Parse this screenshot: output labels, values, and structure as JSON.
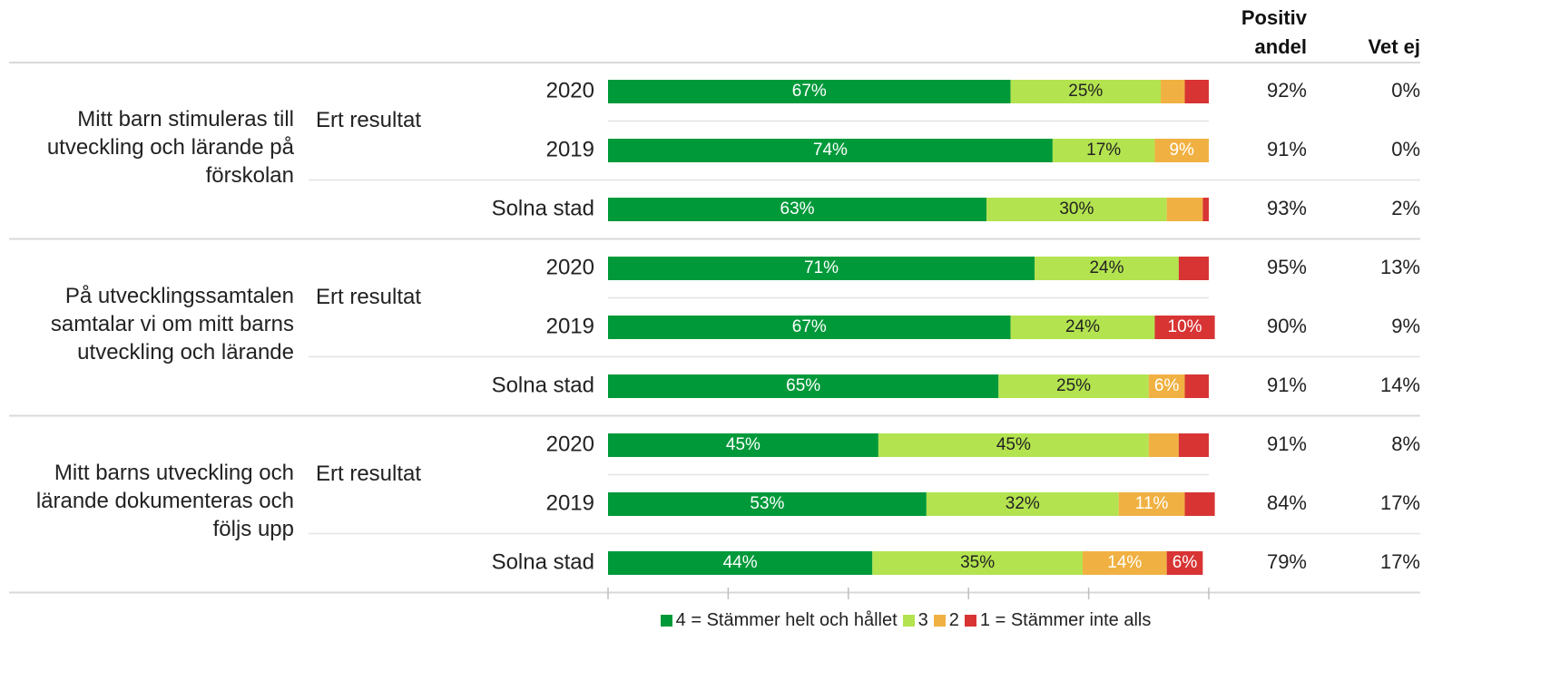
{
  "chart_data": {
    "type": "bar",
    "orientation": "horizontal",
    "stacked": true,
    "groups": [
      {
        "question": "Mitt barn stimuleras till utveckling och lärande på förskolan",
        "sublabel": "Ert resultat"
      },
      {
        "question": "På utvecklingssamtalen samtalar vi om mitt barns utveckling och lärande",
        "sublabel": "Ert resultat"
      },
      {
        "question": "Mitt barns utveckling och lärande dokumenteras och följs upp",
        "sublabel": "Ert resultat"
      }
    ],
    "categories": [
      "2020",
      "2019",
      "Solna stad",
      "2020",
      "2019",
      "Solna stad",
      "2020",
      "2019",
      "Solna stad"
    ],
    "series": [
      {
        "name": "4 = Stämmer helt och hållet",
        "color": "#00993a",
        "label_color": "#ffffff",
        "values": [
          67,
          74,
          63,
          71,
          67,
          65,
          45,
          53,
          44
        ],
        "value_labels": [
          "67%",
          "74%",
          "63%",
          "71%",
          "67%",
          "65%",
          "45%",
          "53%",
          "44%"
        ]
      },
      {
        "name": "3",
        "color": "#b3e34f",
        "label_color": "#222222",
        "values": [
          25,
          17,
          30,
          24,
          24,
          25,
          45,
          32,
          35
        ],
        "value_labels": [
          "25%",
          "17%",
          "30%",
          "24%",
          "24%",
          "25%",
          "45%",
          "32%",
          "35%"
        ]
      },
      {
        "name": "2",
        "color": "#f0b142",
        "label_color": "#ffffff",
        "values": [
          4,
          9,
          6,
          0,
          0,
          6,
          5,
          11,
          14
        ],
        "value_labels": [
          null,
          "9%",
          null,
          null,
          null,
          "6%",
          null,
          "11%",
          "14%"
        ]
      },
      {
        "name": "1 = Stämmer inte alls",
        "color": "#d83434",
        "label_color": "#ffffff",
        "values": [
          4,
          0,
          1,
          5,
          10,
          4,
          5,
          5,
          6
        ],
        "value_labels": [
          null,
          null,
          null,
          null,
          "10%",
          null,
          null,
          null,
          "6%"
        ]
      }
    ],
    "columns": [
      {
        "header": "Positiv andel",
        "values": [
          "92%",
          "91%",
          "93%",
          "95%",
          "90%",
          "91%",
          "91%",
          "84%",
          "79%"
        ]
      },
      {
        "header": "Vet ej",
        "values": [
          "0%",
          "0%",
          "2%",
          "13%",
          "9%",
          "14%",
          "8%",
          "17%",
          "17%"
        ]
      }
    ],
    "xlim": [
      0,
      100
    ],
    "xticks": [
      0,
      20,
      40,
      60,
      80,
      100
    ],
    "legend": "bottom"
  }
}
